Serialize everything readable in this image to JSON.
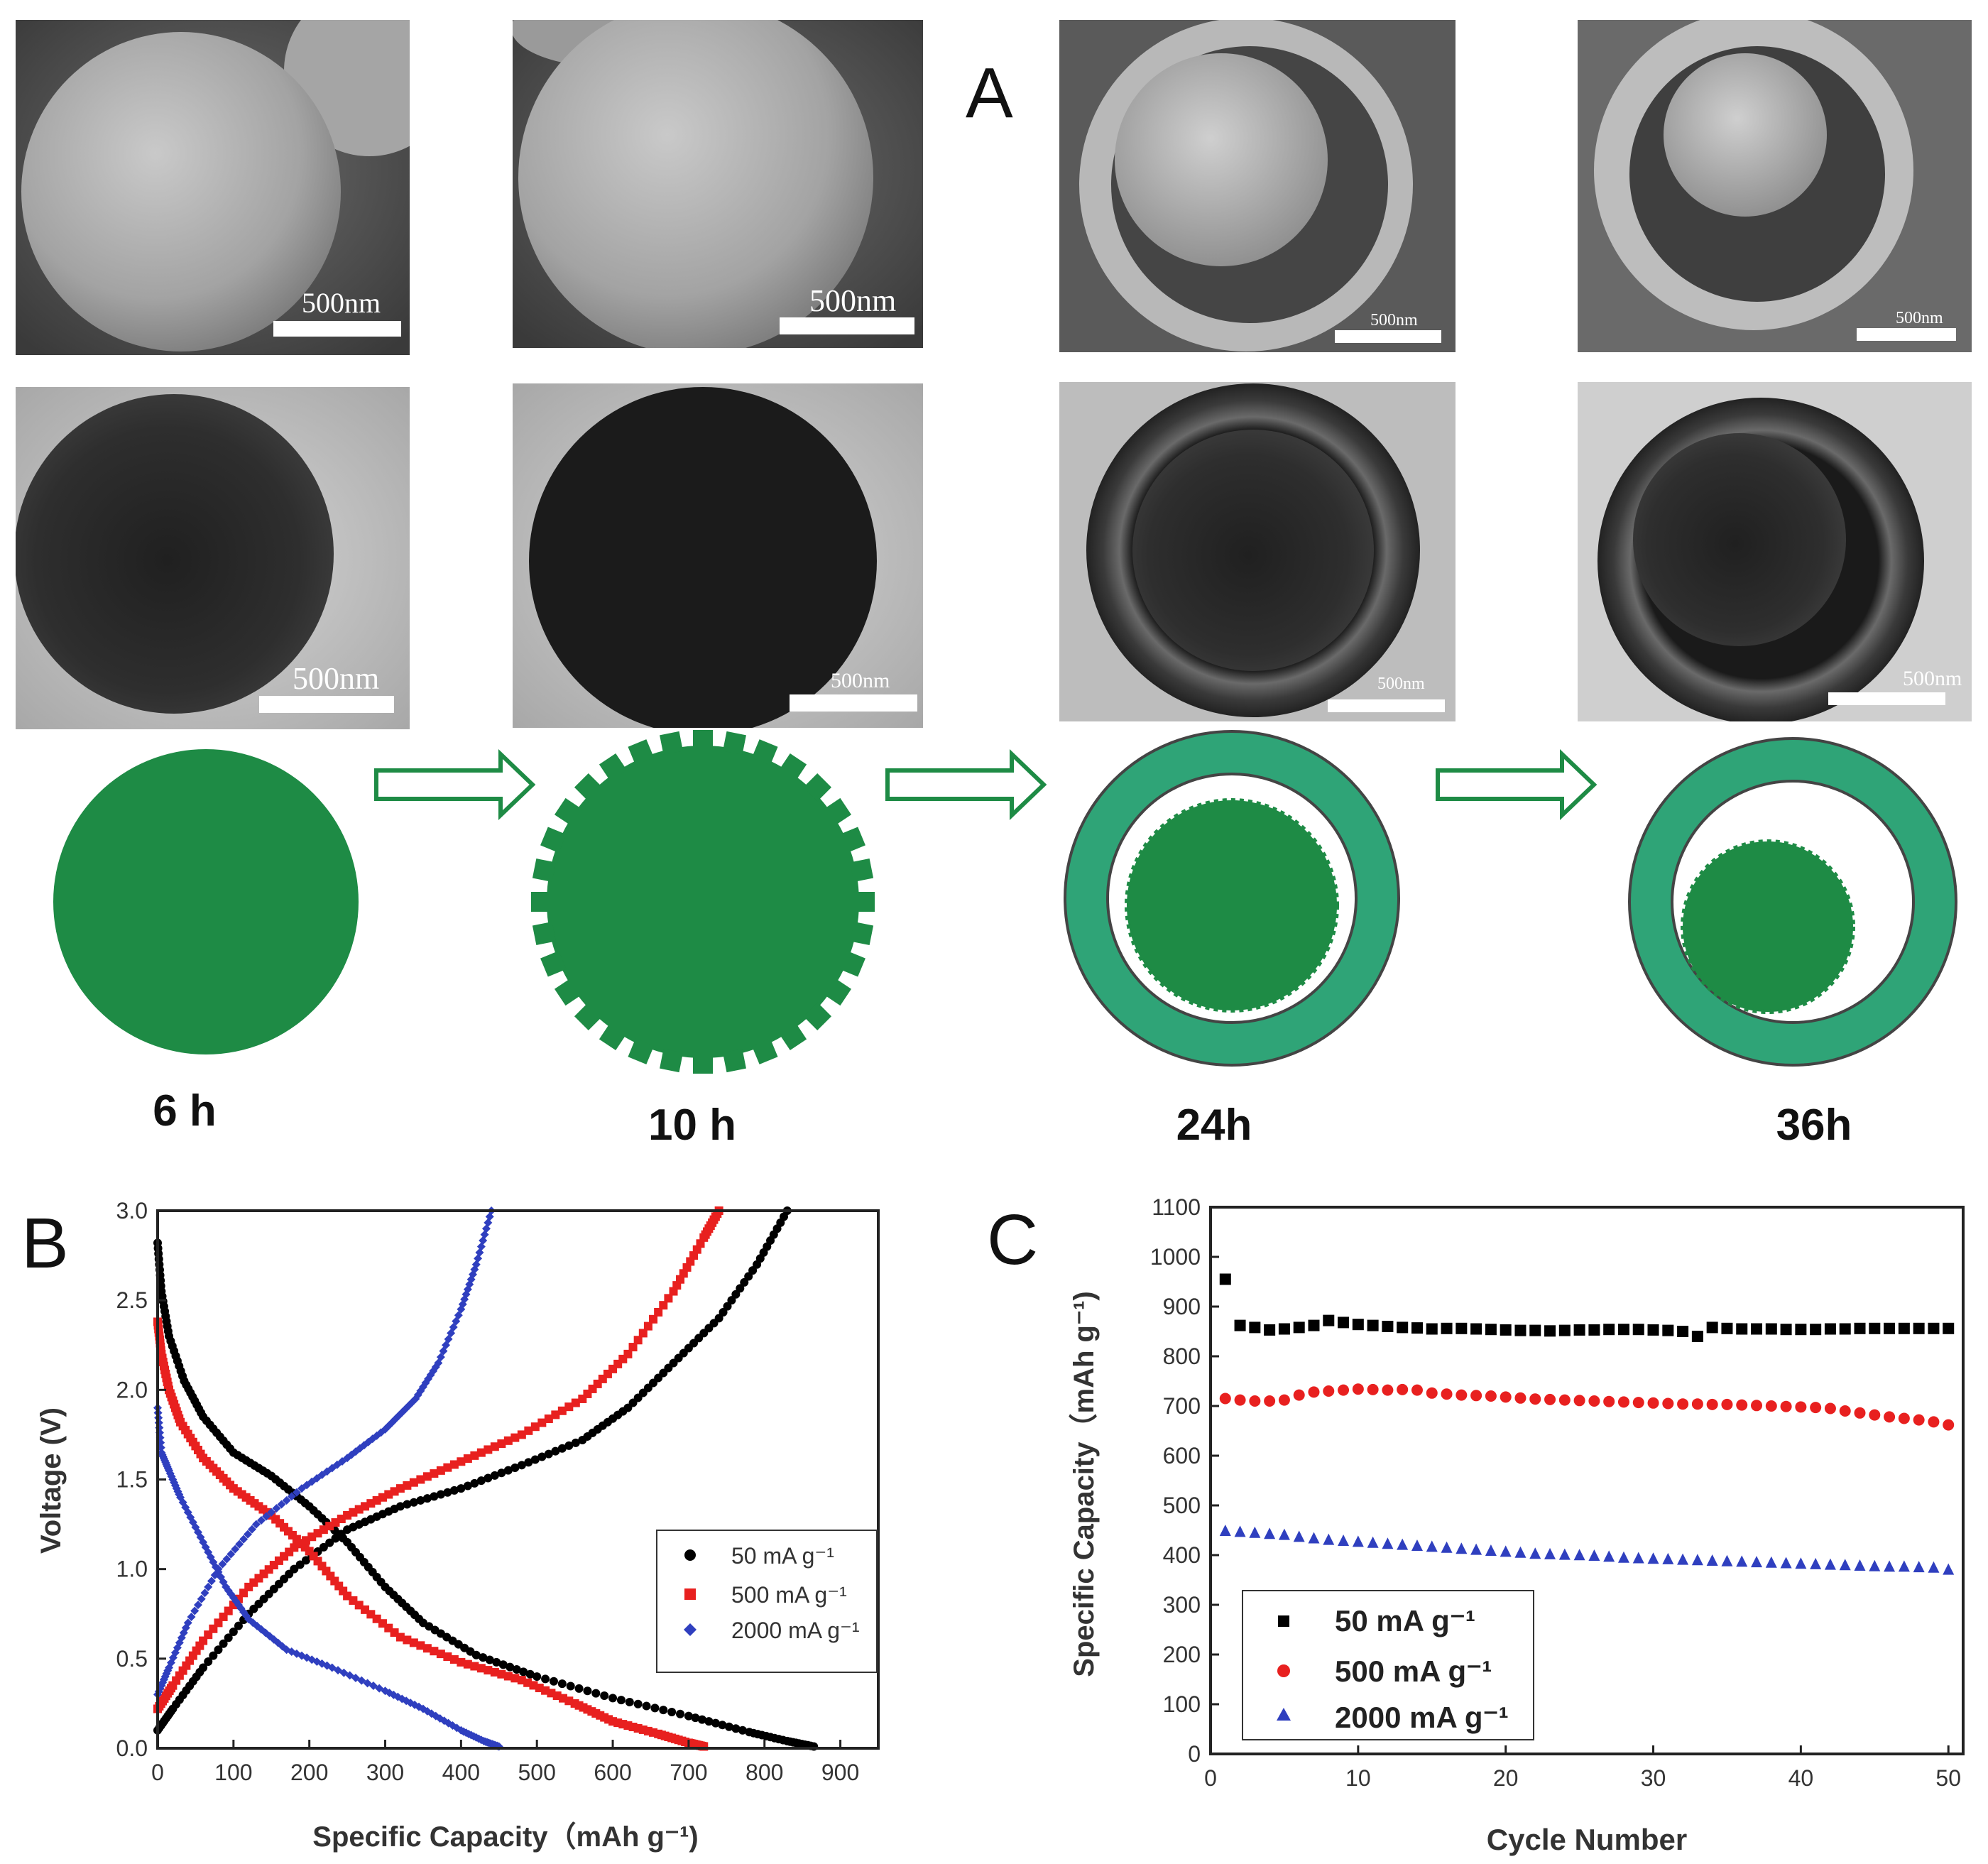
{
  "panel_a": {
    "label": "A",
    "scale_bar_text": "500nm",
    "time_labels": [
      "6 h",
      "10 h",
      "24h",
      "36h"
    ],
    "colors": {
      "sphere_fill": "#1e8b45",
      "shell_fill": "#2fa477",
      "outline": "#444444",
      "arrow": "#1e8b45"
    }
  },
  "chart_data": [
    {
      "type": "line",
      "panel_label": "B",
      "xlabel": "Specific Capacity（mAh g⁻¹)",
      "ylabel": "Voltage (V)",
      "xlim": [
        0,
        950
      ],
      "ylim": [
        0,
        3.0
      ],
      "x_ticks": [
        "0",
        "100",
        "200",
        "300",
        "400",
        "500",
        "600",
        "700",
        "800",
        "900"
      ],
      "y_ticks": [
        "0.0",
        "0.5",
        "1.0",
        "1.5",
        "2.0",
        "2.5",
        "3.0"
      ],
      "grid": false,
      "legend_position": "center-right",
      "series": [
        {
          "name": "50    mA g⁻¹",
          "color": "#000000",
          "marker": "circle",
          "discharge": [
            [
              0,
              2.82
            ],
            [
              5,
              2.55
            ],
            [
              15,
              2.3
            ],
            [
              35,
              2.05
            ],
            [
              60,
              1.85
            ],
            [
              100,
              1.65
            ],
            [
              150,
              1.52
            ],
            [
              200,
              1.35
            ],
            [
              250,
              1.15
            ],
            [
              300,
              0.9
            ],
            [
              350,
              0.7
            ],
            [
              420,
              0.52
            ],
            [
              500,
              0.4
            ],
            [
              600,
              0.28
            ],
            [
              700,
              0.18
            ],
            [
              780,
              0.09
            ],
            [
              830,
              0.04
            ],
            [
              865,
              0.01
            ]
          ],
          "charge": [
            [
              0,
              0.1
            ],
            [
              20,
              0.22
            ],
            [
              60,
              0.45
            ],
            [
              120,
              0.75
            ],
            [
              180,
              1.0
            ],
            [
              250,
              1.22
            ],
            [
              320,
              1.35
            ],
            [
              400,
              1.45
            ],
            [
              480,
              1.58
            ],
            [
              560,
              1.72
            ],
            [
              620,
              1.9
            ],
            [
              680,
              2.15
            ],
            [
              740,
              2.4
            ],
            [
              790,
              2.7
            ],
            [
              830,
              3.0
            ]
          ]
        },
        {
          "name": "500  mA g⁻¹",
          "color": "#e8201f",
          "marker": "square",
          "discharge": [
            [
              0,
              2.38
            ],
            [
              5,
              2.2
            ],
            [
              15,
              2.0
            ],
            [
              30,
              1.82
            ],
            [
              60,
              1.62
            ],
            [
              100,
              1.45
            ],
            [
              150,
              1.3
            ],
            [
              200,
              1.1
            ],
            [
              250,
              0.85
            ],
            [
              320,
              0.62
            ],
            [
              400,
              0.48
            ],
            [
              480,
              0.38
            ],
            [
              550,
              0.25
            ],
            [
              600,
              0.15
            ],
            [
              660,
              0.08
            ],
            [
              700,
              0.03
            ],
            [
              720,
              0.01
            ]
          ],
          "charge": [
            [
              0,
              0.22
            ],
            [
              20,
              0.35
            ],
            [
              60,
              0.6
            ],
            [
              120,
              0.9
            ],
            [
              180,
              1.12
            ],
            [
              250,
              1.3
            ],
            [
              320,
              1.45
            ],
            [
              400,
              1.6
            ],
            [
              480,
              1.75
            ],
            [
              560,
              1.95
            ],
            [
              620,
              2.2
            ],
            [
              680,
              2.55
            ],
            [
              720,
              2.85
            ],
            [
              740,
              3.0
            ]
          ]
        },
        {
          "name": "2000 mA g⁻¹",
          "color": "#2f3fbf",
          "marker": "diamond",
          "discharge": [
            [
              0,
              1.9
            ],
            [
              5,
              1.65
            ],
            [
              15,
              1.55
            ],
            [
              30,
              1.4
            ],
            [
              60,
              1.15
            ],
            [
              90,
              0.9
            ],
            [
              120,
              0.72
            ],
            [
              170,
              0.55
            ],
            [
              230,
              0.45
            ],
            [
              300,
              0.32
            ],
            [
              350,
              0.22
            ],
            [
              400,
              0.1
            ],
            [
              430,
              0.04
            ],
            [
              450,
              0.01
            ]
          ],
          "charge": [
            [
              0,
              0.3
            ],
            [
              15,
              0.45
            ],
            [
              40,
              0.7
            ],
            [
              80,
              1.0
            ],
            [
              130,
              1.25
            ],
            [
              190,
              1.45
            ],
            [
              250,
              1.62
            ],
            [
              300,
              1.78
            ],
            [
              340,
              1.95
            ],
            [
              370,
              2.15
            ],
            [
              400,
              2.45
            ],
            [
              420,
              2.7
            ],
            [
              440,
              3.0
            ]
          ]
        }
      ]
    },
    {
      "type": "scatter",
      "panel_label": "C",
      "xlabel": "Cycle Number",
      "ylabel": "Specific Capacity（mAh g⁻¹)",
      "xlim": [
        0,
        51
      ],
      "ylim": [
        0,
        1100
      ],
      "x_ticks": [
        "0",
        "10",
        "20",
        "30",
        "40",
        "50"
      ],
      "y_ticks": [
        "0",
        "100",
        "200",
        "300",
        "400",
        "500",
        "600",
        "700",
        "800",
        "900",
        "1000",
        "1100"
      ],
      "grid": false,
      "legend_position": "bottom-left",
      "series": [
        {
          "name": "50    mA g⁻¹",
          "color": "#000000",
          "marker": "square",
          "x": [
            1,
            2,
            3,
            4,
            5,
            6,
            7,
            8,
            9,
            10,
            11,
            12,
            13,
            14,
            15,
            16,
            17,
            18,
            19,
            20,
            21,
            22,
            23,
            24,
            25,
            26,
            27,
            28,
            29,
            30,
            31,
            32,
            33,
            34,
            35,
            36,
            37,
            38,
            39,
            40,
            41,
            42,
            43,
            44,
            45,
            46,
            47,
            48,
            49,
            50
          ],
          "values": [
            955,
            862,
            858,
            853,
            855,
            858,
            862,
            872,
            868,
            864,
            862,
            860,
            858,
            857,
            855,
            856,
            856,
            855,
            854,
            853,
            852,
            852,
            851,
            852,
            853,
            853,
            854,
            854,
            854,
            853,
            852,
            850,
            840,
            858,
            856,
            855,
            855,
            855,
            854,
            854,
            854,
            855,
            855,
            856,
            856,
            856,
            856,
            856,
            856,
            856
          ]
        },
        {
          "name": "500  mA g⁻¹",
          "color": "#e8201f",
          "marker": "circle",
          "x": [
            1,
            2,
            3,
            4,
            5,
            6,
            7,
            8,
            9,
            10,
            11,
            12,
            13,
            14,
            15,
            16,
            17,
            18,
            19,
            20,
            21,
            22,
            23,
            24,
            25,
            26,
            27,
            28,
            29,
            30,
            31,
            32,
            33,
            34,
            35,
            36,
            37,
            38,
            39,
            40,
            41,
            42,
            43,
            44,
            45,
            46,
            47,
            48,
            49,
            50
          ],
          "values": [
            715,
            712,
            710,
            710,
            712,
            722,
            728,
            730,
            732,
            734,
            733,
            732,
            733,
            732,
            726,
            724,
            722,
            721,
            720,
            718,
            716,
            714,
            713,
            712,
            711,
            710,
            709,
            708,
            707,
            706,
            705,
            704,
            704,
            703,
            703,
            702,
            701,
            700,
            699,
            698,
            697,
            695,
            690,
            686,
            682,
            678,
            675,
            672,
            668,
            662
          ]
        },
        {
          "name": "2000 mA g⁻¹",
          "color": "#2f3fbf",
          "marker": "triangle",
          "x": [
            1,
            2,
            3,
            4,
            5,
            6,
            7,
            8,
            9,
            10,
            11,
            12,
            13,
            14,
            15,
            16,
            17,
            18,
            19,
            20,
            21,
            22,
            23,
            24,
            25,
            26,
            27,
            28,
            29,
            30,
            31,
            32,
            33,
            34,
            35,
            36,
            37,
            38,
            39,
            40,
            41,
            42,
            43,
            44,
            45,
            46,
            47,
            48,
            49,
            50
          ],
          "values": [
            450,
            448,
            446,
            444,
            442,
            438,
            435,
            432,
            430,
            428,
            426,
            424,
            422,
            420,
            418,
            416,
            414,
            412,
            410,
            408,
            406,
            404,
            403,
            402,
            401,
            400,
            398,
            396,
            395,
            394,
            393,
            392,
            391,
            390,
            389,
            388,
            387,
            386,
            385,
            384,
            383,
            382,
            381,
            380,
            379,
            378,
            378,
            377,
            376,
            372
          ]
        }
      ]
    }
  ]
}
